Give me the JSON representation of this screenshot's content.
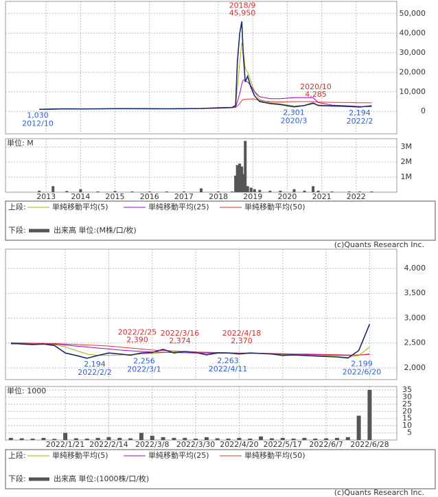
{
  "chart_data": [
    {
      "type": "line",
      "color": "#1a2a6c",
      "x": [
        2012.8,
        2013.2,
        2013.6,
        2014,
        2014.5,
        2015,
        2015.5,
        2016,
        2016.5,
        2017,
        2017.5,
        2018,
        2018.4,
        2018.5,
        2018.55,
        2018.62,
        2018.68,
        2018.72,
        2018.78,
        2018.85,
        2018.95,
        2019.05,
        2019.2,
        2019.5,
        2019.8,
        2020.2,
        2020.5,
        2020.75,
        2020.9,
        2021.3,
        2021.8,
        2022.1,
        2022.45
      ],
      "values": [
        1030,
        1200,
        1300,
        1250,
        1300,
        1400,
        1400,
        1350,
        1300,
        1400,
        1500,
        1800,
        2000,
        3000,
        25000,
        40000,
        45950,
        30000,
        15000,
        18000,
        12000,
        8000,
        5000,
        4000,
        3500,
        2301,
        3000,
        4285,
        3000,
        2800,
        2500,
        2194,
        2900
      ],
      "series": [
        {
          "name": "単純移動平均(5)",
          "color": "#a8b400",
          "values": [
            1050,
            1150,
            1280,
            1270,
            1290,
            1380,
            1400,
            1360,
            1320,
            1390,
            1480,
            1750,
            1950,
            2600,
            12000,
            25000,
            35000,
            32000,
            22000,
            20000,
            15000,
            10000,
            6000,
            4500,
            3800,
            2800,
            2900,
            3800,
            3300,
            2900,
            2600,
            2300,
            2500
          ]
        },
        {
          "name": "単純移動平均(25)",
          "color": "#9900cc",
          "values": [
            1000,
            1100,
            1250,
            1260,
            1280,
            1350,
            1390,
            1370,
            1330,
            1370,
            1450,
            1650,
            1900,
            2200,
            5000,
            9000,
            14000,
            16000,
            16000,
            15000,
            13000,
            10000,
            7500,
            6500,
            6500,
            7000,
            7000,
            7000,
            4500,
            3200,
            2800,
            2500,
            2450
          ]
        },
        {
          "name": "単純移動平均(50)",
          "color": "#e03030",
          "values": [
            1000,
            1080,
            1200,
            1240,
            1270,
            1330,
            1370,
            1370,
            1340,
            1360,
            1420,
            1600,
            1850,
            2000,
            2800,
            4000,
            5500,
            6000,
            6200,
            6300,
            6300,
            6300,
            5500,
            5000,
            4800,
            5000,
            5000,
            5000,
            4800,
            4600,
            4500,
            4400,
            4400
          ]
        },
        {
          "name": "出来高 単位:(M株/口/枚)",
          "color": "#555555",
          "axis": "y2",
          "values": [
            100000,
            400000,
            80000,
            200000,
            50000,
            80000,
            50000,
            50000,
            50000,
            50000,
            250000,
            50000,
            50000,
            1100000,
            1800000,
            1900000,
            1700000,
            1200000,
            3400000,
            400000,
            300000,
            200000,
            150000,
            100000,
            100000,
            200000,
            100000,
            400000,
            100000,
            50000,
            50000,
            50000,
            50000
          ]
        }
      ],
      "xlim": [
        2011.82,
        2023.18
      ],
      "xticks": [
        2013,
        2014,
        2015,
        2016,
        2017,
        2018,
        2019,
        2020,
        2021,
        2022
      ],
      "ylim": [
        -11500,
        56250
      ],
      "yticks": [
        0,
        {
          "value": 10000,
          "label": "10,000"
        },
        {
          "value": 20000,
          "label": "20,000"
        },
        {
          "value": 30000,
          "label": "30,000"
        },
        {
          "value": 40000,
          "label": "40,000"
        },
        {
          "value": 50000,
          "label": "50,000"
        }
      ],
      "y2lim": [
        0,
        3550000
      ],
      "y2ticks": [
        {
          "value": 1000000,
          "label": "1M"
        },
        {
          "value": 2000000,
          "label": "2M"
        },
        {
          "value": 3000000,
          "label": "3M"
        }
      ],
      "y2label": "単位: M",
      "grid": true,
      "annotations": [
        {
          "date": "2018/9",
          "label": "45,950",
          "value": 45950,
          "color": "#d03030",
          "kind": "high"
        },
        {
          "date": "2020/10",
          "label": "4,285",
          "value": 4285,
          "color": "#d03030",
          "kind": "high"
        },
        {
          "date": "2012/10",
          "label": "1,030",
          "value": 1030,
          "color": "#3060d0",
          "kind": "low"
        },
        {
          "date": "2020/3",
          "label": "2,301",
          "value": 2301,
          "color": "#3060d0",
          "kind": "low"
        },
        {
          "date": "2022/2",
          "label": "2,194",
          "value": 2194,
          "color": "#3060d0",
          "kind": "low"
        }
      ],
      "legend_labels": [
        "上段:",
        "下段:"
      ],
      "credit": "(c)Quants Research Inc."
    },
    {
      "type": "line",
      "color": "#1a2a6c",
      "categories": [
        null,
        null,
        null,
        null,
        null,
        "2022/1/21",
        null,
        null,
        null,
        "2022/2/14",
        null,
        null,
        null,
        "2022/3/8",
        null,
        null,
        null,
        "2022/3/30",
        null,
        null,
        null,
        "2022/4/20",
        null,
        null,
        null,
        "2022/5/17",
        null,
        null,
        null,
        "2022/6/7",
        null,
        null,
        null,
        "2022/6/28",
        null,
        null
      ],
      "values": [
        2500,
        2480,
        2470,
        2480,
        2450,
        2300,
        2250,
        2194,
        2250,
        2300,
        2280,
        2256,
        2300,
        2310,
        2374,
        2300,
        2330,
        2310,
        2263,
        2300,
        2300,
        2280,
        2300,
        2290,
        2280,
        2250,
        2260,
        2250,
        2240,
        2230,
        2220,
        2199,
        2350,
        2880,
        null,
        null
      ],
      "series": [
        {
          "name": "単純移動平均(5)",
          "color": "#a8b400",
          "values": [
            2490,
            2490,
            2480,
            2475,
            2470,
            2420,
            2350,
            2280,
            2250,
            2250,
            2260,
            2270,
            2280,
            2290,
            2310,
            2320,
            2320,
            2310,
            2300,
            2295,
            2295,
            2290,
            2290,
            2290,
            2285,
            2270,
            2260,
            2250,
            2245,
            2240,
            2230,
            2210,
            2250,
            2420,
            null,
            null
          ]
        },
        {
          "name": "単純移動平均(25)",
          "color": "#9900cc",
          "values": [
            2500,
            2500,
            2495,
            2490,
            2480,
            2460,
            2440,
            2420,
            2400,
            2380,
            2360,
            2345,
            2330,
            2320,
            2315,
            2310,
            2305,
            2300,
            2300,
            2300,
            2300,
            2295,
            2295,
            2290,
            2285,
            2280,
            2275,
            2270,
            2265,
            2260,
            2255,
            2250,
            2260,
            2280,
            null,
            null
          ]
        },
        {
          "name": "単純移動平均(50)",
          "color": "#e03030",
          "values": [
            2480,
            2485,
            2490,
            2490,
            2490,
            2480,
            2470,
            2460,
            2450,
            2440,
            2420,
            2400,
            2380,
            2360,
            2350,
            2340,
            2330,
            2320,
            2315,
            2310,
            2305,
            2300,
            2300,
            2295,
            2290,
            2285,
            2280,
            2280,
            2275,
            2270,
            2265,
            2260,
            2260,
            2270,
            null,
            null
          ]
        },
        {
          "name": "出来高 単位:(1000株/口/枚)",
          "color": "#555555",
          "axis": "y2",
          "values": [
            1.5,
            1.2,
            1,
            1.5,
            0.8,
            5,
            1.2,
            1,
            1.5,
            2,
            1.5,
            1.2,
            5,
            3,
            2,
            1.5,
            1.5,
            1,
            2,
            1.2,
            1,
            1.5,
            1,
            2.5,
            1.2,
            1.5,
            1,
            1.5,
            1,
            1.2,
            1.5,
            2,
            17,
            35,
            null,
            null
          ]
        }
      ],
      "ylim": [
        1765,
        4386
      ],
      "yticks": [
        {
          "value": 2000,
          "label": "2,000"
        },
        {
          "value": 2500,
          "label": "2,500"
        },
        {
          "value": 3000,
          "label": "3,000"
        },
        {
          "value": 3500,
          "label": "3,500"
        },
        {
          "value": 4000,
          "label": "4,000"
        }
      ],
      "y2lim": [
        0,
        37.4
      ],
      "y2ticks": [
        5,
        10,
        15,
        20,
        25,
        30,
        35
      ],
      "y2label": "単位: 1000",
      "grid": true,
      "annotations": [
        {
          "date": "2022/2/25",
          "label": "2,390",
          "value": 2390,
          "color": "#d03030",
          "kind": "high"
        },
        {
          "date": "2022/3/16",
          "label": "2,374",
          "value": 2374,
          "color": "#d03030",
          "kind": "high"
        },
        {
          "date": "2022/4/18",
          "label": "2,370",
          "value": 2370,
          "color": "#d03030",
          "kind": "high"
        },
        {
          "date": "2022/2/2",
          "label": "2,194",
          "value": 2194,
          "color": "#3060d0",
          "kind": "low"
        },
        {
          "date": "2022/3/1",
          "label": "2,256",
          "value": 2256,
          "color": "#3060d0",
          "kind": "low"
        },
        {
          "date": "2022/4/11",
          "label": "2,263",
          "value": 2263,
          "color": "#3060d0",
          "kind": "low"
        },
        {
          "date": "2022/6/20",
          "label": "2,199",
          "value": 2199,
          "color": "#3060d0",
          "kind": "low"
        }
      ],
      "legend_labels": [
        "上段:",
        "下段:"
      ],
      "credit": "(c)Quants Research Inc."
    }
  ]
}
